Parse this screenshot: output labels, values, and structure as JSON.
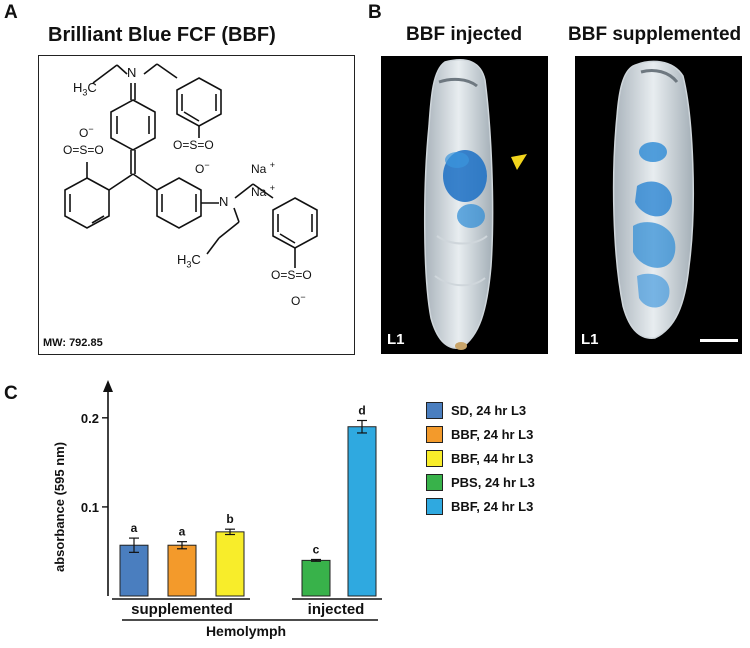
{
  "panels": {
    "a": {
      "letter": "A",
      "title": "Brilliant Blue FCF (BBF)",
      "labels": {
        "ch3_top": "H",
        "ch3_top_sub": "3",
        "ch3_top_c": "C",
        "n_top": "N",
        "n_bottom": "N",
        "ch3_bottom": "H",
        "ch3_bottom_sub": "3",
        "ch3_bottom_c": "C",
        "sulf_left_o_minus": "O",
        "sulf_left_minus": "−",
        "sulf_left": "O=S=O",
        "sulf_right": "O=S=O",
        "sulf_right_o": "O",
        "sulf_right_minus": "−",
        "sulf_bottom": "O=S=O",
        "sulf_bottom_o": "O",
        "sulf_bottom_minus": "−",
        "na1": "Na",
        "na1_plus": "+",
        "na2": "Na",
        "na2_plus": "+"
      },
      "mw": "MW: 792.85"
    },
    "b": {
      "letter": "B",
      "left_title": "BBF injected",
      "right_title": "BBF supplemented",
      "left_stage": "L1",
      "right_stage": "L1"
    },
    "c": {
      "letter": "C",
      "group_labels": [
        "supplemented",
        "injected"
      ],
      "bracket_label": "Hemolymph"
    }
  },
  "chart_data": {
    "type": "bar",
    "ylabel": "absorbance (595 nm)",
    "xlabel": "Hemolymph",
    "ylim": [
      0,
      0.22
    ],
    "yticks": [
      0.1,
      0.2
    ],
    "ytick_labels": [
      "0.1",
      "0.2"
    ],
    "groups": [
      "supplemented",
      "injected"
    ],
    "bars": [
      {
        "name": "SD, 24 hr L3",
        "group": "supplemented",
        "value": 0.057,
        "error": 0.008,
        "letter": "a",
        "color": "#4a7ebf"
      },
      {
        "name": "BBF, 24 hr L3",
        "group": "supplemented",
        "value": 0.057,
        "error": 0.004,
        "letter": "a",
        "color": "#f39a2b"
      },
      {
        "name": "BBF, 44 hr L3",
        "group": "supplemented",
        "value": 0.072,
        "error": 0.003,
        "letter": "b",
        "color": "#f8ed2a"
      },
      {
        "name": "PBS, 24 hr L3",
        "group": "injected",
        "value": 0.04,
        "error": 0.001,
        "letter": "c",
        "color": "#38b24a"
      },
      {
        "name": "BBF, 24 hr L3",
        "group": "injected",
        "value": 0.19,
        "error": 0.007,
        "letter": "d",
        "color": "#2fa9e0"
      }
    ]
  }
}
